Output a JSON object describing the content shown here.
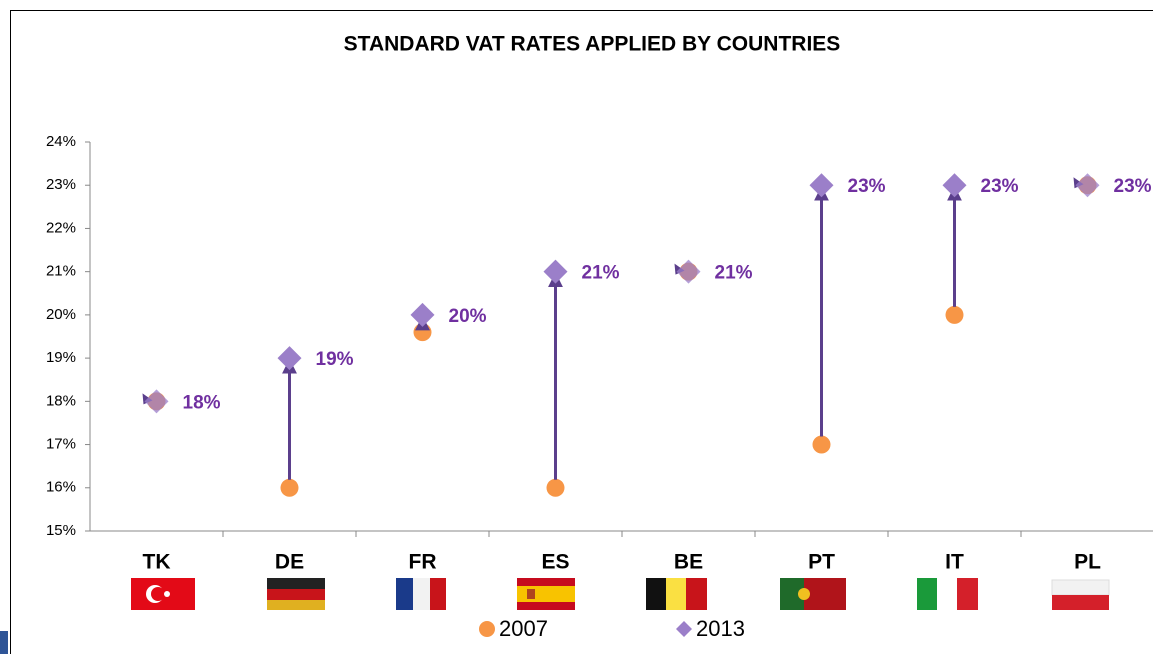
{
  "chart_data": {
    "type": "dot",
    "title": "STANDARD VAT RATES APPLIED BY COUNTRIES",
    "categories": [
      "TK",
      "DE",
      "FR",
      "ES",
      "BE",
      "PT",
      "IT",
      "PL"
    ],
    "series": [
      {
        "name": "2007",
        "color": "#f79646",
        "marker": "circle",
        "values": [
          18,
          16,
          19.6,
          16,
          21,
          17,
          20,
          23
        ]
      },
      {
        "name": "2013",
        "color": "#9b7fc9",
        "marker": "diamond",
        "values": [
          18,
          19,
          20,
          21,
          21,
          23,
          23,
          23
        ],
        "value_labels": [
          "18%",
          "19%",
          "20%",
          "21%",
          "21%",
          "23%",
          "23%",
          "23%"
        ]
      }
    ],
    "arrow_color": "#5b3f8c",
    "ylim": [
      15,
      24
    ],
    "yticks": [
      {
        "value": 15,
        "label": "15%"
      },
      {
        "value": 16,
        "label": "16%"
      },
      {
        "value": 17,
        "label": "17%"
      },
      {
        "value": 18,
        "label": "18%"
      },
      {
        "value": 19,
        "label": "19%"
      },
      {
        "value": 20,
        "label": "20%"
      },
      {
        "value": 21,
        "label": "21%"
      },
      {
        "value": 22,
        "label": "22%"
      },
      {
        "value": 23,
        "label": "23%"
      },
      {
        "value": 24,
        "label": "24%"
      }
    ]
  }
}
